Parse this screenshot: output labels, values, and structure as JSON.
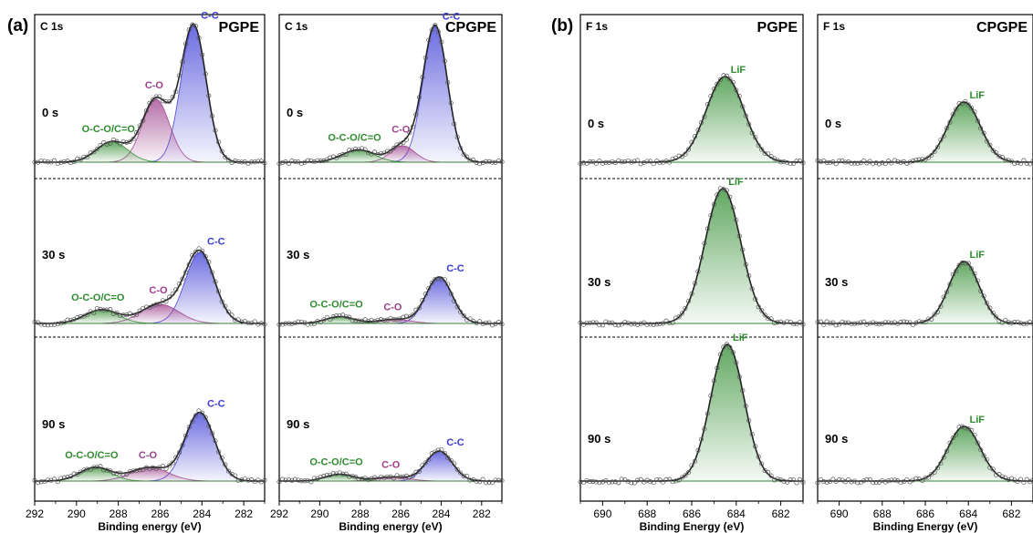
{
  "figure": {
    "panels": [
      {
        "label": "(a)"
      },
      {
        "label": "(b)"
      }
    ]
  },
  "chart_data": [
    {
      "type": "line",
      "subtype": "xps-stacked-deconvolution",
      "element": "C 1s",
      "sample": "PGPE",
      "xlabel": "Binding energy (eV)",
      "xlim": [
        292,
        281
      ],
      "xticks": [
        292,
        290,
        288,
        286,
        284,
        282
      ],
      "x_reversed": true,
      "y_axis_visible": false,
      "grid": false,
      "segments": [
        {
          "time": "0 s",
          "peaks": [
            {
              "label": "C-C",
              "center": 284.4,
              "height": 1.0,
              "sigma": 0.6,
              "color": "#3b3bd6"
            },
            {
              "label": "C-O",
              "center": 286.2,
              "height": 0.46,
              "sigma": 0.65,
              "color": "#9c3f8a"
            },
            {
              "label": "O-C-O/C=O",
              "center": 288.3,
              "height": 0.15,
              "sigma": 0.75,
              "color": "#2e8b2e"
            }
          ]
        },
        {
          "time": "30 s",
          "peaks": [
            {
              "label": "C-C",
              "center": 284.1,
              "height": 0.52,
              "sigma": 0.7,
              "color": "#3b3bd6"
            },
            {
              "label": "C-O",
              "center": 286.0,
              "height": 0.14,
              "sigma": 0.9,
              "color": "#9c3f8a"
            },
            {
              "label": "O-C-O/C=O",
              "center": 288.8,
              "height": 0.1,
              "sigma": 0.8,
              "color": "#2e8b2e"
            }
          ]
        },
        {
          "time": "90 s",
          "peaks": [
            {
              "label": "C-C",
              "center": 284.1,
              "height": 0.5,
              "sigma": 0.7,
              "color": "#3b3bd6"
            },
            {
              "label": "C-O",
              "center": 286.5,
              "height": 0.1,
              "sigma": 0.9,
              "color": "#9c3f8a"
            },
            {
              "label": "O-C-O/C=O",
              "center": 289.1,
              "height": 0.1,
              "sigma": 0.75,
              "color": "#2e8b2e"
            }
          ]
        }
      ]
    },
    {
      "type": "line",
      "subtype": "xps-stacked-deconvolution",
      "element": "C 1s",
      "sample": "CPGPE",
      "xlabel": "Binding energy (eV)",
      "xlim": [
        292,
        281
      ],
      "xticks": [
        292,
        290,
        288,
        286,
        284,
        282
      ],
      "x_reversed": true,
      "y_axis_visible": false,
      "grid": false,
      "segments": [
        {
          "time": "0 s",
          "peaks": [
            {
              "label": "C-C",
              "center": 284.3,
              "height": 1.0,
              "sigma": 0.6,
              "color": "#3b3bd6"
            },
            {
              "label": "C-O",
              "center": 285.9,
              "height": 0.12,
              "sigma": 0.6,
              "color": "#9c3f8a"
            },
            {
              "label": "O-C-O/C=O",
              "center": 288.1,
              "height": 0.09,
              "sigma": 0.8,
              "color": "#2e8b2e"
            }
          ]
        },
        {
          "time": "30 s",
          "peaks": [
            {
              "label": "C-C",
              "center": 284.1,
              "height": 0.34,
              "sigma": 0.65,
              "color": "#3b3bd6"
            },
            {
              "label": "C-O",
              "center": 286.3,
              "height": 0.03,
              "sigma": 0.8,
              "color": "#9c3f8a"
            },
            {
              "label": "O-C-O/C=O",
              "center": 289.0,
              "height": 0.05,
              "sigma": 0.7,
              "color": "#2e8b2e"
            }
          ]
        },
        {
          "time": "90 s",
          "peaks": [
            {
              "label": "C-C",
              "center": 284.1,
              "height": 0.22,
              "sigma": 0.65,
              "color": "#3b3bd6"
            },
            {
              "label": "C-O",
              "center": 286.4,
              "height": 0.03,
              "sigma": 0.8,
              "color": "#9c3f8a"
            },
            {
              "label": "O-C-O/C=O",
              "center": 289.0,
              "height": 0.05,
              "sigma": 0.7,
              "color": "#2e8b2e"
            }
          ]
        }
      ]
    },
    {
      "type": "line",
      "subtype": "xps-stacked-deconvolution",
      "element": "F 1s",
      "sample": "PGPE",
      "xlabel": "Binding Energy (eV)",
      "xlim": [
        691,
        681
      ],
      "xticks": [
        690,
        688,
        686,
        684,
        682
      ],
      "x_reversed": true,
      "y_axis_visible": false,
      "grid": false,
      "segments": [
        {
          "time": "0 s",
          "peaks": [
            {
              "label": "LiF",
              "center": 684.5,
              "height": 0.47,
              "sigma": 0.85,
              "color": "#2e8b2e"
            }
          ]
        },
        {
          "time": "30 s",
          "peaks": [
            {
              "label": "LiF",
              "center": 684.6,
              "height": 0.74,
              "sigma": 0.8,
              "color": "#2e8b2e"
            }
          ]
        },
        {
          "time": "90 s",
          "peaks": [
            {
              "label": "LiF",
              "center": 684.4,
              "height": 0.75,
              "sigma": 0.75,
              "color": "#2e8b2e"
            }
          ]
        }
      ]
    },
    {
      "type": "line",
      "subtype": "xps-stacked-deconvolution",
      "element": "F 1s",
      "sample": "CPGPE",
      "xlabel": "Binding Energy (eV)",
      "xlim": [
        691,
        681
      ],
      "xticks": [
        690,
        688,
        686,
        684,
        682
      ],
      "x_reversed": true,
      "y_axis_visible": false,
      "grid": false,
      "segments": [
        {
          "time": "0 s",
          "peaks": [
            {
              "label": "LiF",
              "center": 684.2,
              "height": 0.33,
              "sigma": 0.75,
              "color": "#2e8b2e"
            }
          ]
        },
        {
          "time": "30 s",
          "peaks": [
            {
              "label": "LiF",
              "center": 684.2,
              "height": 0.34,
              "sigma": 0.7,
              "color": "#2e8b2e"
            }
          ]
        },
        {
          "time": "90 s",
          "peaks": [
            {
              "label": "LiF",
              "center": 684.2,
              "height": 0.3,
              "sigma": 0.75,
              "color": "#2e8b2e"
            }
          ]
        }
      ]
    }
  ]
}
